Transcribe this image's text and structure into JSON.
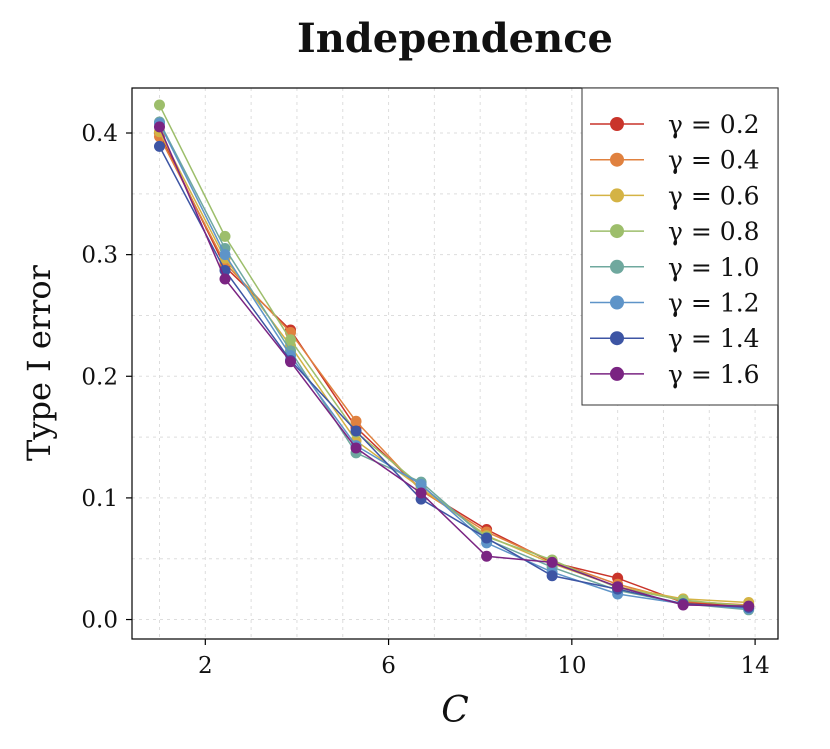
{
  "chart_data": {
    "type": "line",
    "title": "Independence",
    "xlabel": "C",
    "ylabel": "Type I error",
    "x": [
      1,
      2.43,
      3.86,
      5.29,
      6.71,
      8.14,
      9.57,
      11,
      12.43,
      13.86
    ],
    "xlim": [
      0.4,
      14.5
    ],
    "ylim": [
      -0.016,
      0.437
    ],
    "xticks": [
      2,
      6,
      10,
      14
    ],
    "xtick_labels": [
      "2",
      "6",
      "10",
      "14"
    ],
    "yticks": [
      0.0,
      0.1,
      0.2,
      0.3,
      0.4
    ],
    "ytick_labels": [
      "0.0",
      "0.1",
      "0.2",
      "0.3",
      "0.4"
    ],
    "grid": true,
    "legend_position": "top-right",
    "series": [
      {
        "name": "γ = 0.2",
        "color": "#c9342a",
        "values": [
          0.4,
          0.29,
          0.238,
          0.158,
          0.107,
          0.074,
          0.047,
          0.034,
          0.014,
          0.011
        ]
      },
      {
        "name": "γ = 0.4",
        "color": "#e0813f",
        "values": [
          0.397,
          0.293,
          0.236,
          0.163,
          0.106,
          0.072,
          0.048,
          0.029,
          0.015,
          0.012
        ]
      },
      {
        "name": "γ = 0.6",
        "color": "#d4b344",
        "values": [
          0.401,
          0.297,
          0.225,
          0.147,
          0.108,
          0.069,
          0.046,
          0.027,
          0.017,
          0.014
        ]
      },
      {
        "name": "γ = 0.8",
        "color": "#9dbe6b",
        "values": [
          0.423,
          0.315,
          0.23,
          0.154,
          0.11,
          0.068,
          0.049,
          0.026,
          0.016,
          0.011
        ]
      },
      {
        "name": "γ = 1.0",
        "color": "#6fa89e",
        "values": [
          0.409,
          0.305,
          0.221,
          0.137,
          0.113,
          0.066,
          0.043,
          0.024,
          0.013,
          0.008
        ]
      },
      {
        "name": "γ = 1.2",
        "color": "#5e94c8",
        "values": [
          0.408,
          0.3,
          0.217,
          0.143,
          0.111,
          0.063,
          0.039,
          0.021,
          0.013,
          0.009
        ]
      },
      {
        "name": "γ = 1.4",
        "color": "#3d55a4",
        "values": [
          0.389,
          0.287,
          0.213,
          0.155,
          0.099,
          0.067,
          0.036,
          0.025,
          0.013,
          0.01
        ]
      },
      {
        "name": "γ = 1.6",
        "color": "#7a2482",
        "values": [
          0.405,
          0.28,
          0.212,
          0.141,
          0.104,
          0.052,
          0.047,
          0.027,
          0.012,
          0.011
        ]
      }
    ]
  }
}
